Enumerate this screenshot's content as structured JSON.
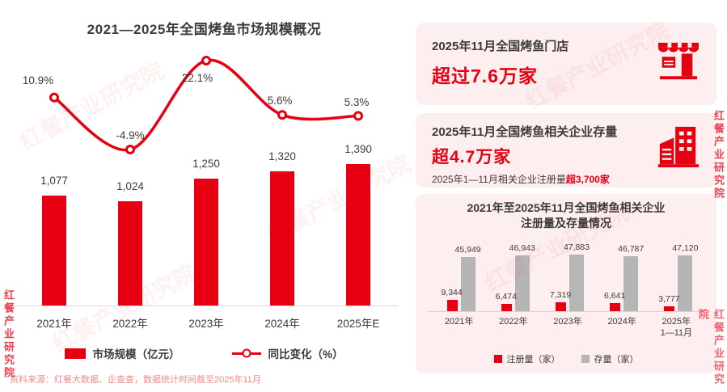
{
  "watermark": "红餐产业研究院",
  "header": {
    "title": "2021—2025年全国烤鱼市场规模概况"
  },
  "cards": {
    "stores": {
      "title": "2025年11月全国烤鱼门店",
      "value": "超过7.6万家"
    },
    "enterprises": {
      "title": "2025年11月全国烤鱼相关企业存量",
      "value": "超4.7万家",
      "note_prefix": "2025年1—11月相关企业注册量",
      "note_highlight": "超3,700家"
    },
    "registry": {
      "title_line1": "2021年至2025年11月全国烤鱼相关企业",
      "title_line2": "注册量及存量情况"
    }
  },
  "chart_data": [
    {
      "type": "bar",
      "title": "2021—2025年全国烤鱼市场规模概况",
      "categories": [
        "2021年",
        "2022年",
        "2023年",
        "2024年",
        "2025年E"
      ],
      "series": [
        {
          "name": "市场规模（亿元）",
          "type": "bar",
          "values": [
            1077,
            1024,
            1250,
            1320,
            1390
          ],
          "labels": [
            "1,077",
            "1,024",
            "1,250",
            "1,320",
            "1,390"
          ]
        },
        {
          "name": "同比变化（%）",
          "type": "line",
          "values": [
            10.9,
            -4.9,
            22.1,
            5.6,
            5.3
          ],
          "labels": [
            "10.9%",
            "-4.9%",
            "22.1%",
            "5.6%",
            "5.3%"
          ]
        }
      ],
      "ylim": [
        0,
        1390
      ],
      "legend_position": "bottom",
      "grid": false
    },
    {
      "type": "bar",
      "title": "2021年至2025年11月全国烤鱼相关企业注册量及存量情况",
      "categories": [
        "2021年",
        "2022年",
        "2023年",
        "2024年",
        "2025年\n1—11月"
      ],
      "series": [
        {
          "name": "注册量（家）",
          "values": [
            9344,
            6474,
            7319,
            6641,
            3777
          ],
          "labels": [
            "9,344",
            "6,474",
            "7,319",
            "6,641",
            "3,777"
          ]
        },
        {
          "name": "存量（家）",
          "values": [
            45949,
            46943,
            47883,
            46787,
            47120
          ],
          "labels": [
            "45,949",
            "46,943",
            "47,883",
            "46,787",
            "47,120"
          ]
        }
      ],
      "ylim": [
        0,
        47883
      ],
      "legend_position": "bottom",
      "grid": false
    }
  ],
  "source": "资料来源：红餐大数据、企查查，数据统计时间截至2025年11月",
  "colors": {
    "red": "#e60012",
    "dark": "#3e3a39",
    "gray_bar": "#b5b5b6",
    "card_bg": "#fdeff0"
  }
}
